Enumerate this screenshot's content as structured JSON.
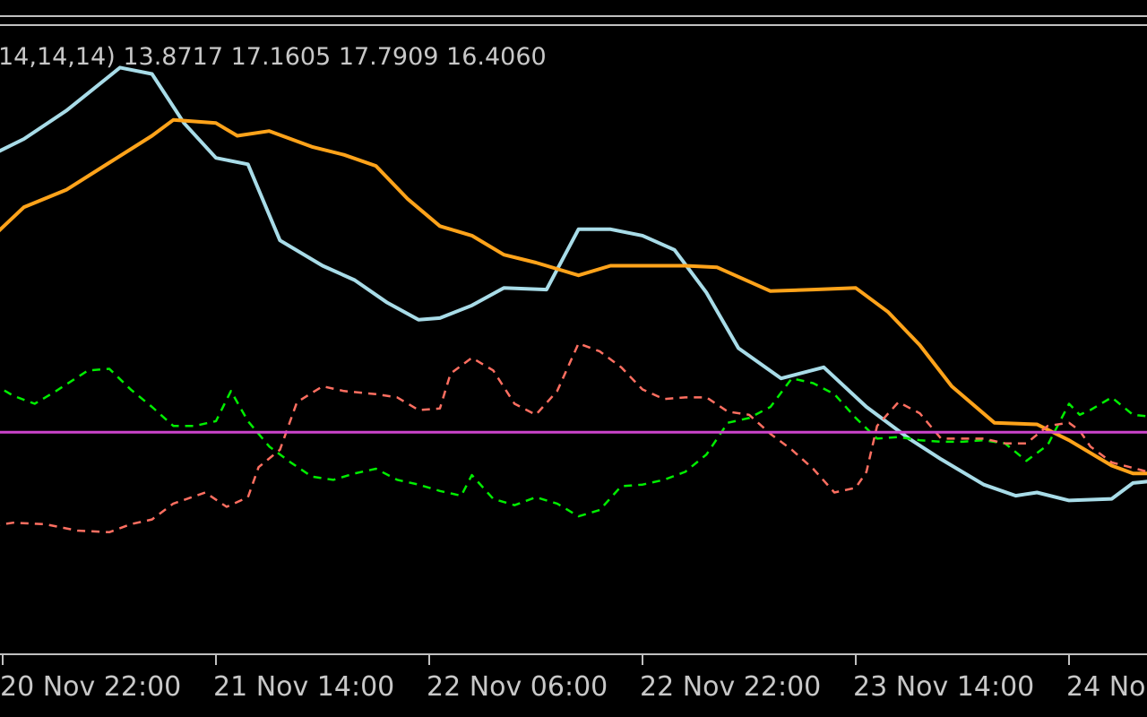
{
  "indicator": {
    "label": "14,14,14) 13.8717 17.1605 17.7909 16.4060"
  },
  "colors": {
    "background": "#000000",
    "frame": "#c0c0c0",
    "tick_text": "#c8c8c8",
    "signal_line": "#cc44cc"
  },
  "chart_data": {
    "type": "line",
    "title": "",
    "xlabel": "",
    "ylabel": "",
    "x_range": [
      0,
      5.36
    ],
    "ylim": [
      -2,
      37
    ],
    "grid": false,
    "x_ticks": [
      {
        "x": 0,
        "label": "20 Nov 22:00"
      },
      {
        "x": 1,
        "label": "21 Nov 14:00"
      },
      {
        "x": 2,
        "label": "22 Nov 06:00"
      },
      {
        "x": 3,
        "label": "22 Nov 22:00"
      },
      {
        "x": 4,
        "label": "23 Nov 14:00"
      },
      {
        "x": 5,
        "label": "24 No"
      }
    ],
    "reference_line": {
      "y": 12,
      "color": "#cc44cc"
    },
    "series": [
      {
        "color": "#a8dce8",
        "dash": "solid",
        "points": [
          [
            -0.05,
            29.5
          ],
          [
            0.1,
            30.5
          ],
          [
            0.3,
            32.3
          ],
          [
            0.55,
            35
          ],
          [
            0.7,
            34.6
          ],
          [
            0.85,
            31.5
          ],
          [
            1.0,
            29.3
          ],
          [
            1.15,
            28.9
          ],
          [
            1.3,
            24.1
          ],
          [
            1.5,
            22.5
          ],
          [
            1.65,
            21.6
          ],
          [
            1.8,
            20.2
          ],
          [
            1.95,
            19.1
          ],
          [
            2.05,
            19.2
          ],
          [
            2.2,
            20
          ],
          [
            2.35,
            21.1
          ],
          [
            2.55,
            21
          ],
          [
            2.7,
            24.8
          ],
          [
            2.85,
            24.8
          ],
          [
            3.0,
            24.4
          ],
          [
            3.15,
            23.5
          ],
          [
            3.3,
            20.8
          ],
          [
            3.45,
            17.3
          ],
          [
            3.65,
            15.4
          ],
          [
            3.85,
            16.1
          ],
          [
            4.05,
            13.6
          ],
          [
            4.25,
            11.6
          ],
          [
            4.4,
            10.3
          ],
          [
            4.6,
            8.7
          ],
          [
            4.75,
            8
          ],
          [
            4.85,
            8.2
          ],
          [
            5.0,
            7.7
          ],
          [
            5.2,
            7.8
          ],
          [
            5.3,
            8.8
          ],
          [
            5.37,
            8.9
          ]
        ]
      },
      {
        "color": "#ffa31a",
        "dash": "solid",
        "points": [
          [
            -0.05,
            24.3
          ],
          [
            0.1,
            26.2
          ],
          [
            0.3,
            27.3
          ],
          [
            0.5,
            29
          ],
          [
            0.7,
            30.7
          ],
          [
            0.8,
            31.7
          ],
          [
            1.0,
            31.5
          ],
          [
            1.1,
            30.7
          ],
          [
            1.25,
            31
          ],
          [
            1.45,
            30
          ],
          [
            1.6,
            29.5
          ],
          [
            1.75,
            28.8
          ],
          [
            1.9,
            26.7
          ],
          [
            2.05,
            25
          ],
          [
            2.2,
            24.4
          ],
          [
            2.35,
            23.2
          ],
          [
            2.5,
            22.7
          ],
          [
            2.7,
            21.9
          ],
          [
            2.85,
            22.5
          ],
          [
            3.0,
            22.5
          ],
          [
            3.2,
            22.5
          ],
          [
            3.35,
            22.4
          ],
          [
            3.5,
            21.5
          ],
          [
            3.6,
            20.9
          ],
          [
            3.8,
            21
          ],
          [
            4.0,
            21.1
          ],
          [
            4.15,
            19.6
          ],
          [
            4.3,
            17.5
          ],
          [
            4.45,
            14.9
          ],
          [
            4.65,
            12.6
          ],
          [
            4.85,
            12.5
          ],
          [
            5.0,
            11.5
          ],
          [
            5.2,
            9.9
          ],
          [
            5.3,
            9.4
          ],
          [
            5.37,
            9.4
          ]
        ]
      },
      {
        "color": "#00ee00",
        "dash": "dashed",
        "points": [
          [
            -0.05,
            15.1
          ],
          [
            0.05,
            14.3
          ],
          [
            0.15,
            13.8
          ],
          [
            0.25,
            14.6
          ],
          [
            0.4,
            15.9
          ],
          [
            0.5,
            16
          ],
          [
            0.6,
            14.7
          ],
          [
            0.7,
            13.6
          ],
          [
            0.8,
            12.4
          ],
          [
            0.9,
            12.4
          ],
          [
            1.0,
            12.7
          ],
          [
            1.07,
            14.6
          ],
          [
            1.15,
            12.7
          ],
          [
            1.25,
            11.1
          ],
          [
            1.35,
            10.1
          ],
          [
            1.45,
            9.2
          ],
          [
            1.55,
            9
          ],
          [
            1.65,
            9.4
          ],
          [
            1.75,
            9.7
          ],
          [
            1.85,
            9
          ],
          [
            1.95,
            8.7
          ],
          [
            2.05,
            8.3
          ],
          [
            2.15,
            8
          ],
          [
            2.2,
            9.3
          ],
          [
            2.3,
            7.8
          ],
          [
            2.4,
            7.4
          ],
          [
            2.5,
            7.9
          ],
          [
            2.6,
            7.5
          ],
          [
            2.7,
            6.7
          ],
          [
            2.8,
            7.1
          ],
          [
            2.9,
            8.6
          ],
          [
            3.0,
            8.7
          ],
          [
            3.1,
            9
          ],
          [
            3.2,
            9.5
          ],
          [
            3.3,
            10.6
          ],
          [
            3.4,
            12.6
          ],
          [
            3.5,
            12.9
          ],
          [
            3.6,
            13.6
          ],
          [
            3.7,
            15.4
          ],
          [
            3.8,
            15.1
          ],
          [
            3.9,
            14.4
          ],
          [
            4.0,
            12.9
          ],
          [
            4.1,
            11.6
          ],
          [
            4.2,
            11.7
          ],
          [
            4.3,
            11.5
          ],
          [
            4.4,
            11.4
          ],
          [
            4.5,
            11.4
          ],
          [
            4.6,
            11.5
          ],
          [
            4.7,
            11.3
          ],
          [
            4.8,
            10.2
          ],
          [
            4.9,
            11.2
          ],
          [
            5.0,
            13.8
          ],
          [
            5.05,
            13.1
          ],
          [
            5.1,
            13.4
          ],
          [
            5.2,
            14.2
          ],
          [
            5.3,
            13.1
          ],
          [
            5.37,
            13
          ]
        ]
      },
      {
        "color": "#ff6f61",
        "dash": "dashed",
        "points": [
          [
            -0.05,
            6.1
          ],
          [
            0.05,
            6.3
          ],
          [
            0.2,
            6.2
          ],
          [
            0.35,
            5.8
          ],
          [
            0.5,
            5.7
          ],
          [
            0.6,
            6.2
          ],
          [
            0.7,
            6.5
          ],
          [
            0.8,
            7.5
          ],
          [
            0.95,
            8.2
          ],
          [
            1.05,
            7.3
          ],
          [
            1.15,
            7.9
          ],
          [
            1.2,
            9.8
          ],
          [
            1.3,
            10.9
          ],
          [
            1.38,
            13.9
          ],
          [
            1.5,
            14.9
          ],
          [
            1.6,
            14.6
          ],
          [
            1.75,
            14.4
          ],
          [
            1.85,
            14.2
          ],
          [
            1.95,
            13.4
          ],
          [
            2.05,
            13.5
          ],
          [
            2.1,
            15.7
          ],
          [
            2.2,
            16.7
          ],
          [
            2.3,
            15.9
          ],
          [
            2.4,
            13.8
          ],
          [
            2.5,
            13.1
          ],
          [
            2.6,
            14.6
          ],
          [
            2.7,
            17.6
          ],
          [
            2.8,
            17.1
          ],
          [
            2.9,
            16.1
          ],
          [
            3.0,
            14.7
          ],
          [
            3.1,
            14.1
          ],
          [
            3.2,
            14.2
          ],
          [
            3.3,
            14.2
          ],
          [
            3.4,
            13.3
          ],
          [
            3.5,
            13.1
          ],
          [
            3.6,
            11.9
          ],
          [
            3.7,
            10.9
          ],
          [
            3.8,
            9.7
          ],
          [
            3.9,
            8.2
          ],
          [
            4.0,
            8.5
          ],
          [
            4.05,
            9.5
          ],
          [
            4.1,
            12.4
          ],
          [
            4.2,
            13.9
          ],
          [
            4.3,
            13.2
          ],
          [
            4.4,
            11.6
          ],
          [
            4.5,
            11.6
          ],
          [
            4.6,
            11.6
          ],
          [
            4.7,
            11.3
          ],
          [
            4.8,
            11.3
          ],
          [
            4.9,
            12.4
          ],
          [
            5.0,
            12.6
          ],
          [
            5.05,
            12.1
          ],
          [
            5.1,
            11.1
          ],
          [
            5.2,
            10.1
          ],
          [
            5.37,
            9.5
          ]
        ]
      }
    ]
  }
}
